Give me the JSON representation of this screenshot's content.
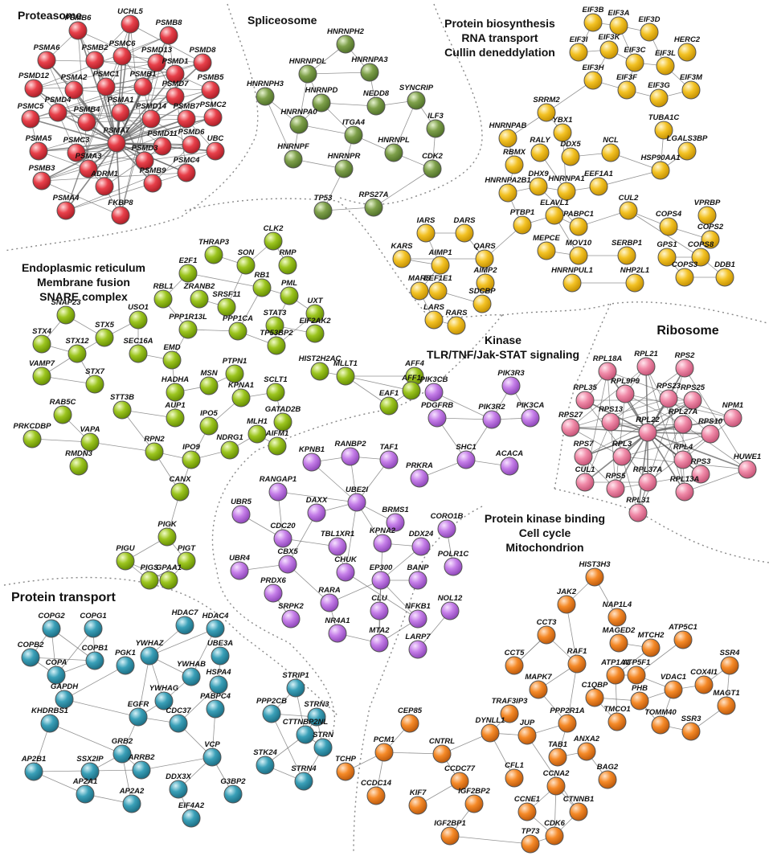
{
  "clusters": [
    {
      "id": "proteasome",
      "title_lines": [
        "Proteasome"
      ],
      "color": "#e8404a",
      "nodes": [
        "PSMB6",
        "UCHL5",
        "PSMB8",
        "PSMA6",
        "PSMB2",
        "PSMC6",
        "PSMD13",
        "PSMD1",
        "PSMD8",
        "PSMD12",
        "PSMA2",
        "PSMC1",
        "PSMB1",
        "PSMD7",
        "PSMB5",
        "PSMC5",
        "PSMD4",
        "PSMB4",
        "PSMA1",
        "PSMD14",
        "PSMB7",
        "PSMC2",
        "PSMA5",
        "PSMC3",
        "PSMA7",
        "PSMD11",
        "PSMD6",
        "UBC",
        "PSMB3",
        "PSMA3",
        "PSMD3",
        "PSMC4",
        "ADRM1",
        "PSMB9",
        "PSMA4",
        "FKBP8"
      ]
    },
    {
      "id": "spliceosome",
      "title_lines": [
        "Spliceosome"
      ],
      "color": "#7ea04a",
      "nodes": [
        "HNRNPH2",
        "HNRNPDL",
        "HNRNPA3",
        "HNRNPH3",
        "SYNCRIP",
        "HNRNPD",
        "NEDD8",
        "HNRNPA0",
        "ITGA4",
        "ILF3",
        "HNRNPF",
        "HNRNPL",
        "HNRNPR",
        "CDK2",
        "TP53",
        "RPS27A"
      ]
    },
    {
      "id": "biosynthesis",
      "title_lines": [
        "Protein biosynthesis",
        "RNA transport",
        "Cullin deneddylation"
      ],
      "color": "#f3c224",
      "nodes": [
        "EIF3B",
        "EIF3A",
        "EIF3D",
        "EIF3I",
        "EIF3K",
        "HERC2",
        "EIF3C",
        "EIF3L",
        "EIF3H",
        "EIF3M",
        "EIF3F",
        "EIF3G",
        "SRRM2",
        "HNRNPAB",
        "YBX1",
        "TUBA1C",
        "RBMX",
        "RALY",
        "DDX5",
        "NCL",
        "LGALS3BP",
        "HNRNPA2B1",
        "DHX9",
        "HNRNPA1",
        "EEF1A1",
        "HSP90AA1",
        "ELAVL1",
        "PTBP1",
        "PABPC1",
        "CUL2",
        "VPRBP",
        "COPS4",
        "COPS2",
        "IARS",
        "DARS",
        "QARS",
        "MEPCE",
        "MOV10",
        "SERBP1",
        "GPS1",
        "COPS8",
        "KARS",
        "AIMP1",
        "AIMP2",
        "EEF1E1",
        "DDB1",
        "MARS",
        "HNRNPUL1",
        "NHP2L1",
        "COPS3",
        "LARS",
        "SDCBP",
        "RARS"
      ]
    },
    {
      "id": "er",
      "title_lines": [
        "Endoplasmic reticulum",
        "Membrane fusion",
        "SNARE complex"
      ],
      "color": "#9cc51f",
      "nodes": [
        "THRAP3",
        "CLK2",
        "E2F1",
        "SON",
        "RMP",
        "RBL1",
        "ZRANB2",
        "RB1",
        "PML",
        "SNAP23",
        "USO1",
        "SRSF11",
        "UXT",
        "STX4",
        "STX5",
        "PPP1R13L",
        "PPP1CA",
        "STAT3",
        "EIF2AK2",
        "STX12",
        "SEC16A",
        "EMD",
        "TP53BP2",
        "VAMP7",
        "STX7",
        "PTPN1",
        "HIST2H2AC",
        "AFF4",
        "MSN",
        "HADHA",
        "KPNA1",
        "SCLT1",
        "MLLT1",
        "AFF1",
        "RAB5C",
        "STT3B",
        "GATAD2B",
        "EAF1",
        "AUP1",
        "IPO5",
        "MLH1",
        "PRKCDBP",
        "VAPA",
        "AIFM1",
        "RPN2",
        "NDRG1",
        "RMDN3",
        "IPO9",
        "CANX",
        "PIGK",
        "PIGU",
        "PIGT",
        "PIGS",
        "GPAA1"
      ]
    },
    {
      "id": "kinase",
      "title_lines": [
        "Kinase",
        "TLR/TNF/Jak-STAT signaling"
      ],
      "color": "#c57ee8",
      "nodes": [
        "PIK3CB",
        "PIK3R3",
        "PDGFRB",
        "PIK3R2",
        "PIK3CA",
        "SHC1",
        "ACACA",
        "KPNB1",
        "RANBP2",
        "TAF1",
        "PRKRA",
        "RANGAP1",
        "UBE2I",
        "UBR5",
        "DAXX",
        "BRMS1",
        "CORO1B",
        "CDC20",
        "TBL1XR1",
        "KPNA2",
        "DDX24",
        "POLR1C",
        "UBR4",
        "CBX5",
        "CHUK",
        "EP300",
        "BANP",
        "PRDX6",
        "RARA",
        "CLU",
        "NOL12",
        "SRPK2",
        "NFKB1",
        "NR4A1",
        "MTA2",
        "LARP7"
      ]
    },
    {
      "id": "ribosome",
      "title_lines": [
        "Ribosome"
      ],
      "color": "#f08aa8",
      "nodes": [
        "RPL18A",
        "RPL21",
        "RPS2",
        "RPL35",
        "RPL9P9",
        "RPS23",
        "RPS25",
        "NPM1",
        "RPS27",
        "RPS13",
        "RPL22",
        "RPL27A",
        "RPS10",
        "RPS7",
        "RPL4",
        "RPL3",
        "CUL1",
        "RPS3",
        "HUWE1",
        "RPL37A",
        "RPS5",
        "RPL13A",
        "RPL31"
      ]
    },
    {
      "id": "transport",
      "title_lines": [
        "Protein transport"
      ],
      "color": "#3aa0b8",
      "nodes": [
        "COPG2",
        "COPG1",
        "HDAC7",
        "HDAC4",
        "COPB2",
        "YWHAZ",
        "UBE3A",
        "COPB1",
        "PGK1",
        "COPA",
        "YWHAB",
        "HSPA4",
        "YWHAG",
        "STRIP1",
        "GAPDH",
        "PABPC4",
        "PPP2CB",
        "STRN3",
        "KHDRBS1",
        "EGFR",
        "CDC37",
        "CTTNBP2NL",
        "GRB2",
        "STRN",
        "AP2B1",
        "SSX2IP",
        "ARRB2",
        "VCP",
        "STK24",
        "DDX3X",
        "G3BP2",
        "STRN4",
        "AP2A1",
        "AP2A2",
        "EIF4A2"
      ]
    },
    {
      "id": "cellcycle",
      "title_lines": [
        "Protein kinase binding",
        "Cell cycle",
        "Mitochondrion"
      ],
      "color": "#f58a28",
      "nodes": [
        "HIST3H3",
        "JAK2",
        "NAP1L4",
        "CCT3",
        "MAGED2",
        "MTCH2",
        "ATP5C1",
        "CCT5",
        "RAF1",
        "ATP1A1",
        "ATP5F1",
        "SSR4",
        "MAPK7",
        "VDAC1",
        "COX4I1",
        "C1QBP",
        "PHB",
        "MAGT1",
        "TRAF3IP3",
        "PPP2R1A",
        "TMCO1",
        "TOMM40",
        "SSR3",
        "CEP85",
        "DYNLL1",
        "JUP",
        "ANXA2",
        "PCM1",
        "CNTRL",
        "TAB1",
        "TCHP",
        "CFL1",
        "BAG2",
        "CCDC77",
        "CCNA2",
        "CCDC14",
        "KIF7",
        "IGF2BP2",
        "CCNE1",
        "CTNNB1",
        "CDK6",
        "TP73",
        "IGF2BP1"
      ]
    }
  ]
}
